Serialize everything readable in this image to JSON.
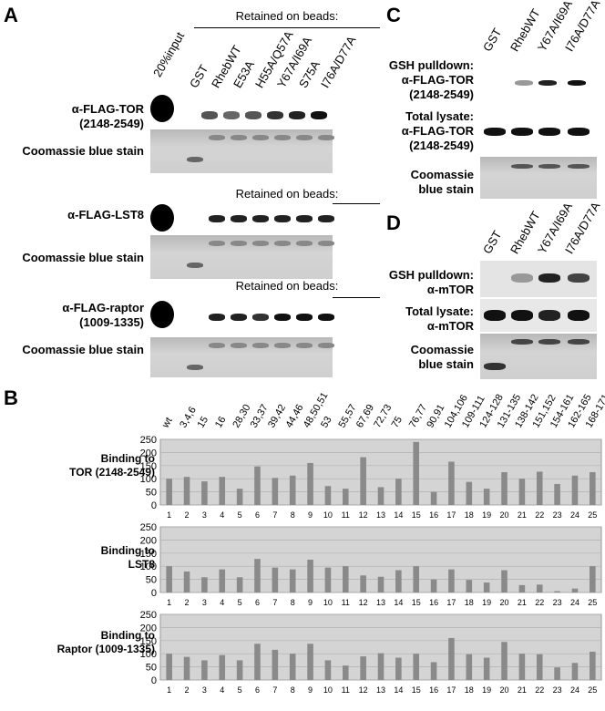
{
  "panels": {
    "A": "A",
    "B": "B",
    "C": "C",
    "D": "D"
  },
  "panelA": {
    "input_label": "20%input",
    "lanes": [
      "GST",
      "RhebWT",
      "E53A",
      "H55A/Q57A",
      "Y67A/I69A",
      "S75A",
      "I76A/D77A"
    ],
    "retained_label": "Retained on beads:",
    "rows": [
      {
        "blot": "α-FLAG-TOR\n(2148-2549)",
        "stain": "Coomassie blue stain"
      },
      {
        "blot": "α-FLAG-LST8",
        "stain": "Coomassie blue stain"
      },
      {
        "blot": "α-FLAG-raptor\n(1009-1335)",
        "stain": "Coomassie blue stain"
      }
    ]
  },
  "panelC": {
    "lanes": [
      "GST",
      "RhebWT",
      "Y67A/I69A",
      "I76A/D77A"
    ],
    "gsh": "GSH pulldown:\nα-FLAG-TOR\n(2148-2549)",
    "total": "Total lysate:\nα-FLAG-TOR\n(2148-2549)",
    "stain": "Coomassie\nblue stain"
  },
  "panelD": {
    "lanes": [
      "GST",
      "RhebWT",
      "Y67A/I69A",
      "I76A/D77A"
    ],
    "gsh": "GSH pulldown:\nα-mTOR",
    "total": "Total lysate:\nα-mTOR",
    "stain": "Coomassie\nblue stain"
  },
  "chart_data": {
    "type": "bar",
    "mutants": [
      "wt",
      "3,4,6",
      "15",
      "16",
      "28,30",
      "33,37",
      "39,42",
      "44,46",
      "48,50,51",
      "53",
      "55,57",
      "67,69",
      "72,73",
      "75",
      "76,77",
      "90,91",
      "104,106",
      "109-111",
      "124-128",
      "131-135",
      "138-142",
      "151,152",
      "154-161",
      "162-165",
      "168-171"
    ],
    "categories": [
      "1",
      "2",
      "3",
      "4",
      "5",
      "6",
      "7",
      "8",
      "9",
      "10",
      "11",
      "12",
      "13",
      "14",
      "15",
      "16",
      "17",
      "18",
      "19",
      "20",
      "21",
      "22",
      "23",
      "24",
      "25"
    ],
    "ylim": [
      0,
      250
    ],
    "yticks": [
      "0",
      "50",
      "100",
      "150",
      "200",
      "250"
    ],
    "subplots": [
      {
        "label": "Binding to\nTOR (2148-2549)",
        "values": [
          100,
          107,
          90,
          107,
          62,
          147,
          103,
          112,
          160,
          72,
          62,
          182,
          68,
          100,
          240,
          50,
          165,
          88,
          62,
          125,
          100,
          127,
          80,
          112,
          125
        ]
      },
      {
        "label": "Binding to\nLST8",
        "values": [
          100,
          80,
          58,
          88,
          58,
          128,
          95,
          88,
          125,
          95,
          100,
          65,
          60,
          85,
          100,
          50,
          88,
          48,
          38,
          85,
          28,
          30,
          5,
          15,
          100
        ]
      },
      {
        "label": "Binding to\nRaptor (1009-1335)",
        "values": [
          100,
          88,
          75,
          95,
          75,
          138,
          115,
          100,
          138,
          75,
          55,
          90,
          102,
          85,
          100,
          68,
          160,
          98,
          85,
          145,
          100,
          98,
          48,
          65,
          108
        ]
      }
    ]
  }
}
